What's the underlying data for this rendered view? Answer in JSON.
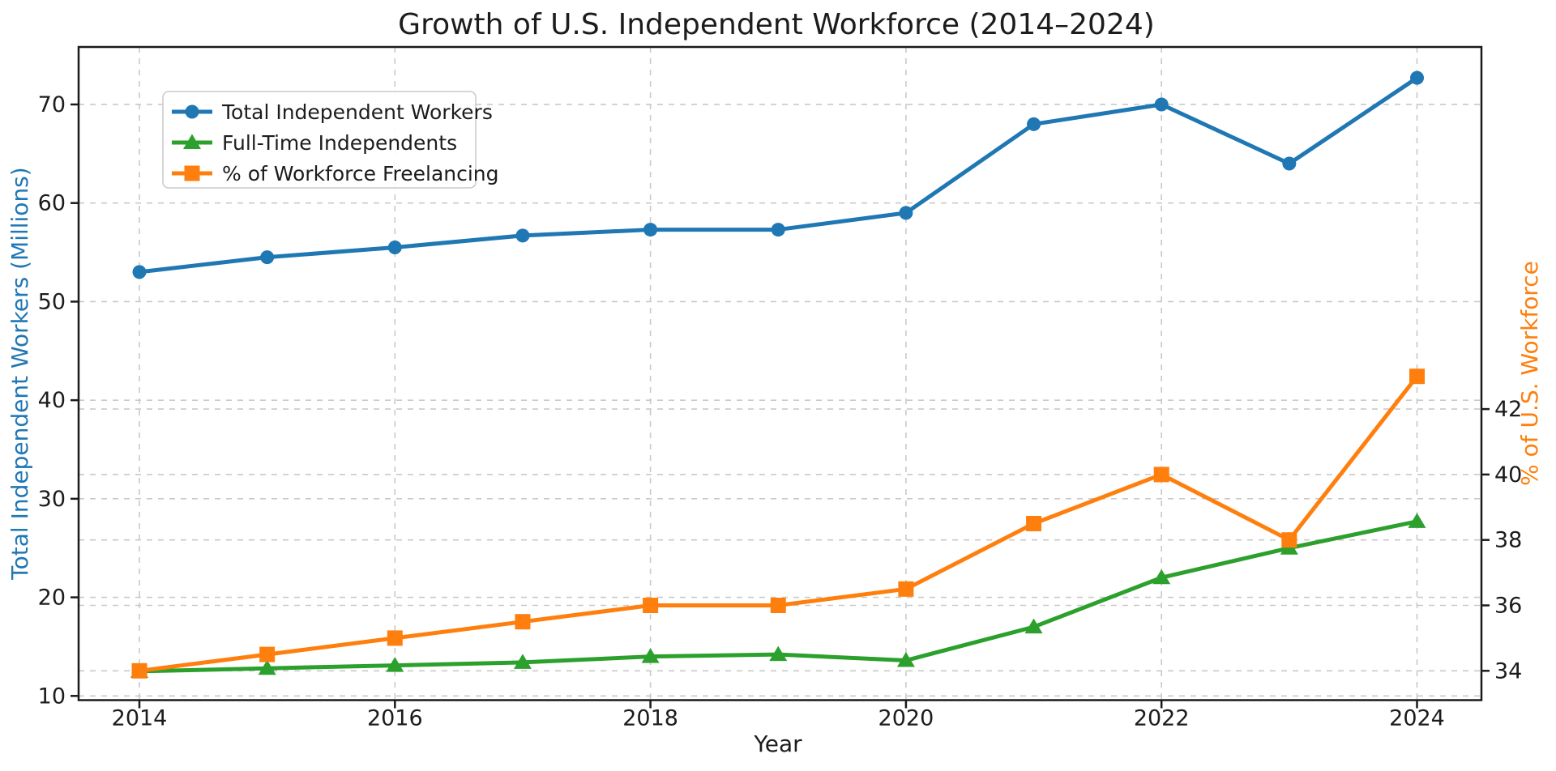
{
  "chart_data": {
    "type": "line",
    "title": "Growth of U.S. Independent Workforce (2014–2024)",
    "xlabel": "Year",
    "ylabel_left": "Total Independent Workers (Millions)",
    "ylabel_right": "% of U.S. Workforce",
    "x": [
      2014,
      2015,
      2016,
      2017,
      2018,
      2019,
      2020,
      2021,
      2022,
      2023,
      2024
    ],
    "x_ticks": [
      2014,
      2016,
      2018,
      2020,
      2022,
      2024
    ],
    "y_left_ticks": [
      10,
      20,
      30,
      40,
      50,
      60,
      70
    ],
    "y_right_ticks": [
      34,
      36,
      38,
      40,
      42
    ],
    "y_left_range": [
      9.5,
      76.0
    ],
    "y_right_range": [
      33.5,
      43.6
    ],
    "grid": true,
    "grid_style": "dashed",
    "legend_position": "upper-left",
    "series": [
      {
        "name": "Total Independent Workers",
        "axis": "left",
        "color": "#1f77b4",
        "marker": "circle",
        "values": [
          53.0,
          54.5,
          55.5,
          56.7,
          57.3,
          57.3,
          59.0,
          68.0,
          70.0,
          64.0,
          72.7
        ]
      },
      {
        "name": "Full-Time Independents",
        "axis": "left",
        "color": "#2ca02c",
        "marker": "triangle",
        "values": [
          12.5,
          12.8,
          13.1,
          13.4,
          14.0,
          14.2,
          13.6,
          17.0,
          22.0,
          25.0,
          27.7
        ]
      },
      {
        "name": "% of Workforce Freelancing",
        "axis": "right",
        "color": "#ff7f0e",
        "marker": "square",
        "values": [
          34.0,
          34.5,
          35.0,
          35.5,
          36.0,
          36.0,
          36.5,
          38.5,
          40.0,
          38.0,
          43.0
        ]
      }
    ],
    "colors": {
      "left_axis_text": "#1f77b4",
      "right_axis_text": "#ff7f0e",
      "grid": "#c9c9c9",
      "spine": "#1a1a1a",
      "tick_text": "#1c1c1c",
      "background": "#ffffff"
    }
  }
}
